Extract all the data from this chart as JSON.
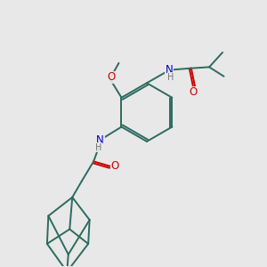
{
  "background_color": "#e8e8e8",
  "bond_color": "#2d6b5e",
  "o_color": "#cc0000",
  "n_color": "#0000cc",
  "h_color": "#777777",
  "line_width": 1.4,
  "font_size": 8.5,
  "fig_w": 3.0,
  "fig_h": 3.0,
  "dpi": 100,
  "xlim": [
    0,
    10
  ],
  "ylim": [
    0,
    10
  ]
}
